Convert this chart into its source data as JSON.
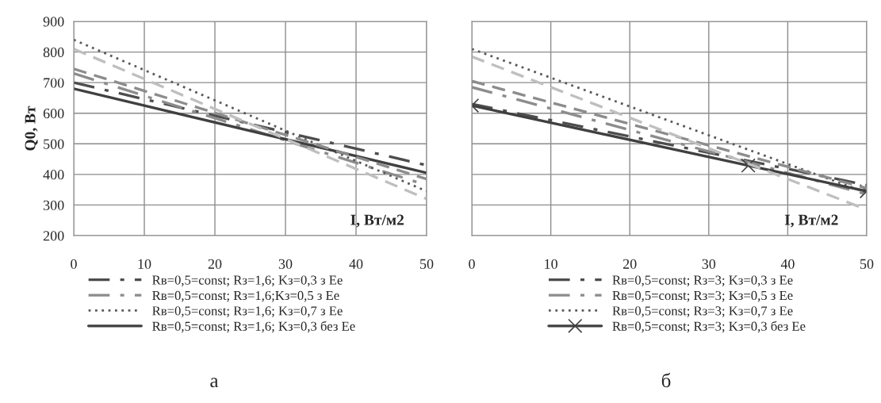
{
  "chart_data": [
    {
      "type": "line",
      "ylabel": "Q0, Вт",
      "xlabel": "I, Вт/м2",
      "xlim": [
        0,
        50
      ],
      "ylim": [
        200,
        900
      ],
      "xticks": [
        0,
        10,
        20,
        30,
        40,
        50
      ],
      "yticks": [
        200,
        300,
        400,
        500,
        600,
        700,
        800,
        900
      ],
      "grid": true,
      "legend": "bottom",
      "annotations": [
        "а"
      ],
      "series": [
        {
          "name": "Rв=0,5=const; Rз=1,6; Kз=0,3 з Ee",
          "color": "#4d4d4d",
          "line_style": "dashdot",
          "x": [
            0,
            50
          ],
          "values": [
            700,
            430
          ]
        },
        {
          "name": "Rв=0,5=const; Rз=1,6;Kз=0,5 з Ee",
          "color": "#8c8c8c",
          "line_style": "dashdot",
          "x": [
            0,
            50
          ],
          "values": [
            730,
            365
          ]
        },
        {
          "name": "Rв=0,5=const; Rз=1,6; Kз=0,7 з Ee",
          "color": "#595959",
          "line_style": "dotted",
          "x": [
            0,
            50
          ],
          "values": [
            840,
            345
          ]
        },
        {
          "name": "Rв=0,5=const; Rз=1,6; Kз=0,3 без Ee",
          "color": "#404040",
          "line_style": "solid",
          "x": [
            0,
            50
          ],
          "values": [
            680,
            405
          ]
        },
        {
          "color": "#8c8c8c",
          "line_style": "dashed",
          "x": [
            0,
            50
          ],
          "values": [
            745,
            385
          ]
        },
        {
          "color": "#bfbfbf",
          "line_style": "dashed",
          "x": [
            0,
            50
          ],
          "values": [
            810,
            320
          ]
        }
      ]
    },
    {
      "type": "line",
      "xlabel": "I, Вт/м2",
      "xlim": [
        0,
        50
      ],
      "ylim": [
        200,
        900
      ],
      "xticks": [
        0,
        10,
        20,
        30,
        40,
        50
      ],
      "yticks": [
        200,
        300,
        400,
        500,
        600,
        700,
        800,
        900
      ],
      "tick_labels": "x",
      "grid": true,
      "legend": "bottom",
      "annotations": [
        "б"
      ],
      "series": [
        {
          "name": "Rв=0,5=const; Rз=3; Kз=0,3 з Ee",
          "color": "#4d4d4d",
          "line_style": "dashdot",
          "x": [
            0,
            50
          ],
          "values": [
            630,
            365
          ]
        },
        {
          "name": "Rв=0,5=const; Rз=3; Kз=0,5 з Ee",
          "color": "#8c8c8c",
          "line_style": "dashdot",
          "x": [
            0,
            50
          ],
          "values": [
            685,
            335
          ]
        },
        {
          "name": "Rв=0,5=const; Rз=3; Kз=0,7 з Ee",
          "color": "#595959",
          "line_style": "dotted",
          "x": [
            0,
            50
          ],
          "values": [
            810,
            340
          ]
        },
        {
          "name": "Rв=0,5=const; Rз=3; Kз=0,3 без Ee",
          "color": "#404040",
          "line_style": "solid",
          "marker": "cross",
          "x": [
            0,
            35,
            50
          ],
          "values": [
            625,
            429,
            345
          ]
        },
        {
          "color": "#8c8c8c",
          "line_style": "dashed",
          "x": [
            0,
            50
          ],
          "values": [
            705,
            355
          ]
        },
        {
          "color": "#bfbfbf",
          "line_style": "dashed",
          "x": [
            0,
            50
          ],
          "values": [
            785,
            285
          ]
        }
      ]
    }
  ]
}
